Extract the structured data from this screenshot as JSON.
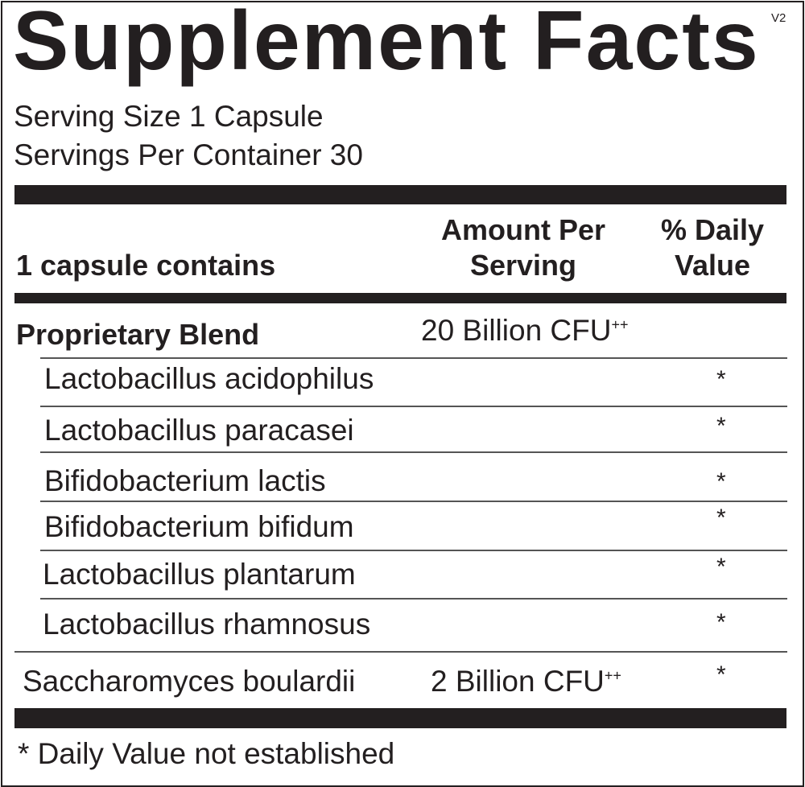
{
  "title": "Supplement Facts",
  "version": "V2",
  "serving_size": "Serving Size 1 Capsule",
  "servings_per_container": "Servings Per Container 30",
  "header": {
    "col1": "1 capsule contains",
    "col2_line1": "Amount Per",
    "col2_line2": "Serving",
    "col3_line1": "% Daily",
    "col3_line2": "Value"
  },
  "blend": {
    "name": "Proprietary Blend",
    "amount": "20 Billion CFU",
    "amount_sup": "++"
  },
  "ingredients": [
    {
      "name": "Lactobacillus acidophilus",
      "dv": "*"
    },
    {
      "name": "Lactobacillus paracasei",
      "dv": "*"
    },
    {
      "name": "Bifidobacterium lactis",
      "dv": "*"
    },
    {
      "name": "Bifidobacterium bifidum",
      "dv": "*"
    },
    {
      "name": "Lactobacillus plantarum",
      "dv": "*"
    },
    {
      "name": "Lactobacillus rhamnosus",
      "dv": "*"
    }
  ],
  "other": {
    "name": "Saccharomyces boulardii",
    "amount": "2 Billion CFU",
    "amount_sup": "++",
    "dv": "*"
  },
  "footnote": "* Daily Value not established"
}
